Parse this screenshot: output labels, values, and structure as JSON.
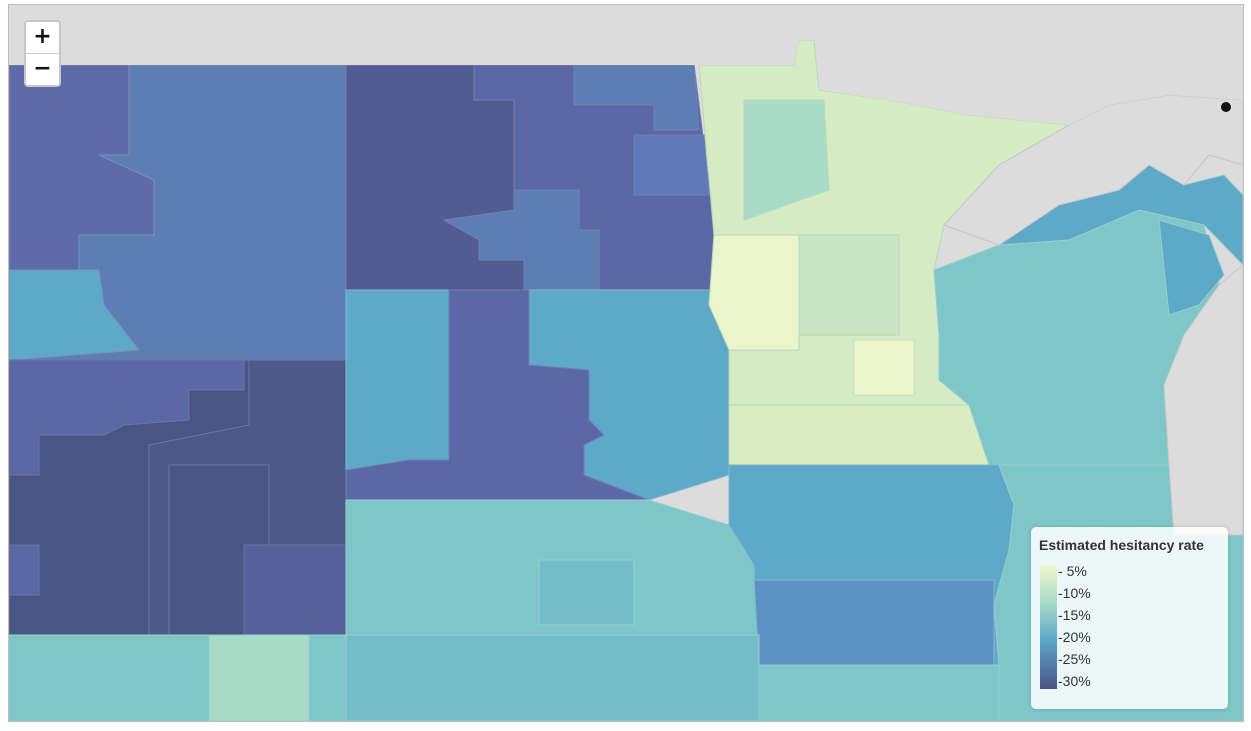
{
  "controls": {
    "zoom_in_label": "+",
    "zoom_out_label": "−"
  },
  "legend": {
    "title": "Estimated hesitancy rate",
    "ticks": [
      "5%",
      "10%",
      "15%",
      "20%",
      "25%",
      "30%"
    ],
    "color_low": "#eff8d0",
    "color_high": "#4c5486"
  },
  "colors": {
    "background": "#dcdcdc",
    "lake": "#dcdcdc",
    "very_high": "#4a5585",
    "high": "#525b92",
    "high_mid": "#5b68a6",
    "mid_high": "#5c7eb2",
    "mid": "#5ea8c8",
    "mid_low": "#7ec6c8",
    "low": "#a9dcc8",
    "very_low": "#d4ebc4",
    "lowest": "#eaf5cc"
  }
}
